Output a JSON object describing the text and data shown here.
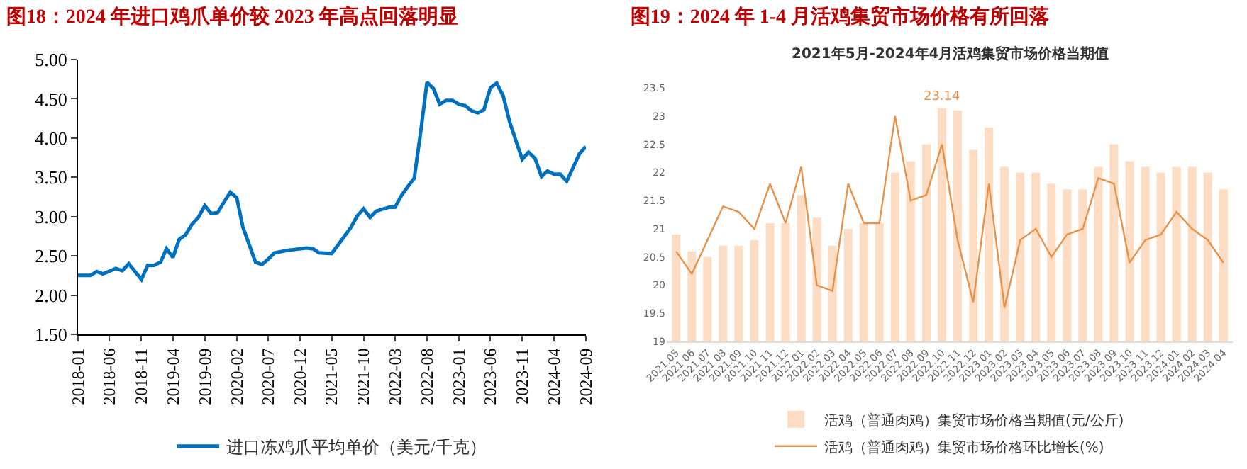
{
  "chart_data": [
    {
      "type": "line",
      "title": "图18：2024 年进口鸡爪单价较 2023 年高点回落明显",
      "x": [
        "2018-01",
        "2018-03",
        "2018-04",
        "2018-05",
        "2018-07",
        "2018-08",
        "2018-09",
        "2018-11",
        "2018-12",
        "2019-01",
        "2019-02",
        "2019-03",
        "2019-04",
        "2019-05",
        "2019-06",
        "2019-07",
        "2019-08",
        "2019-09",
        "2019-10",
        "2019-11",
        "2019-12",
        "2020-01",
        "2020-02",
        "2020-03",
        "2020-04",
        "2020-05",
        "2020-06",
        "2020-07",
        "2020-08",
        "2020-10",
        "2021-01",
        "2021-02",
        "2021-03",
        "2021-05",
        "2021-06",
        "2021-07",
        "2021-08",
        "2021-09",
        "2021-10",
        "2021-11",
        "2021-12",
        "2022-02",
        "2022-03",
        "2022-04",
        "2022-05",
        "2022-06",
        "2022-07",
        "2022-08",
        "2022-09",
        "2022-10",
        "2022-11",
        "2022-12",
        "2023-01",
        "2023-02",
        "2023-03",
        "2023-04",
        "2023-05",
        "2023-06",
        "2023-07",
        "2023-08",
        "2023-09",
        "2023-10",
        "2023-11",
        "2023-12",
        "2024-01",
        "2024-02",
        "2024-03",
        "2024-04",
        "2024-05",
        "2024-06",
        "2024-07",
        "2024-08",
        "2024-09"
      ],
      "series": [
        {
          "name": "进口冻鸡爪平均单价（美元/千克）",
          "color": "#0070c0",
          "values": [
            2.25,
            2.25,
            2.3,
            2.27,
            2.34,
            2.31,
            2.4,
            2.2,
            2.38,
            2.38,
            2.42,
            2.59,
            2.48,
            2.71,
            2.77,
            2.9,
            2.99,
            3.14,
            3.04,
            3.05,
            3.18,
            3.31,
            3.24,
            2.87,
            2.64,
            2.42,
            2.39,
            2.46,
            2.54,
            2.57,
            2.6,
            2.59,
            2.54,
            2.53,
            2.64,
            2.75,
            2.86,
            3.01,
            3.1,
            2.99,
            3.07,
            3.12,
            3.12,
            3.27,
            3.38,
            3.49,
            4.06,
            4.71,
            4.63,
            4.43,
            4.48,
            4.48,
            4.43,
            4.41,
            4.35,
            4.32,
            4.36,
            4.64,
            4.7,
            4.54,
            4.21,
            3.97,
            3.73,
            3.82,
            3.74,
            3.51,
            3.58,
            3.54,
            3.54,
            3.45,
            3.62,
            3.8,
            3.89
          ]
        }
      ],
      "xlim": [
        "2018-01",
        "2024-09"
      ],
      "xticks": [
        {
          "value": "2018-01",
          "label": "2018-01"
        },
        {
          "value": "2018-06",
          "label": "2018-06"
        },
        {
          "value": "2018-11",
          "label": "2018-11"
        },
        {
          "value": "2019-04",
          "label": "2019-04"
        },
        {
          "value": "2019-09",
          "label": "2019-09"
        },
        {
          "value": "2020-02",
          "label": "2020-02"
        },
        {
          "value": "2020-07",
          "label": "2020-07"
        },
        {
          "value": "2020-12",
          "label": "2020-12"
        },
        {
          "value": "2021-05",
          "label": "2021-05"
        },
        {
          "value": "2021-10",
          "label": "2021-10"
        },
        {
          "value": "2022-03",
          "label": "2022-03"
        },
        {
          "value": "2022-08",
          "label": "2022-08"
        },
        {
          "value": "2023-01",
          "label": "2023-01"
        },
        {
          "value": "2023-06",
          "label": "2023-06"
        },
        {
          "value": "2023-11",
          "label": "2023-11"
        },
        {
          "value": "2024-04",
          "label": "2024-04"
        },
        {
          "value": "2024-09",
          "label": "2024-09"
        }
      ],
      "ylim": [
        1.5,
        5
      ],
      "yticks": [
        {
          "value": 1.5,
          "label": "1.50"
        },
        {
          "value": 2,
          "label": "2.00"
        },
        {
          "value": 2.5,
          "label": "2.50"
        },
        {
          "value": 3,
          "label": "3.00"
        },
        {
          "value": 3.5,
          "label": "3.50"
        },
        {
          "value": 4,
          "label": "4.00"
        },
        {
          "value": 4.5,
          "label": "4.50"
        },
        {
          "value": 5,
          "label": "5.00"
        }
      ],
      "legend": "bottom",
      "grid": false
    },
    {
      "type": "bar",
      "title": "图19：2024 年 1-4 月活鸡集贸市场价格有所回落",
      "subtitle": "2021年5月-2024年4月活鸡集贸市场价格当期值",
      "categories": [
        "2021.05",
        "2021.06",
        "2021.07",
        "2021.08",
        "2021.09",
        "2021.10",
        "2021.11",
        "2021.12",
        "2022.01",
        "2022.02",
        "2022.03",
        "2022.04",
        "2022.05",
        "2022.06",
        "2022.07",
        "2022.08",
        "2022.09",
        "2022.10",
        "2022.11",
        "2022.12",
        "2023.01",
        "2023.02",
        "2023.03",
        "2023.04",
        "2023.05",
        "2023.06",
        "2023.07",
        "2023.08",
        "2023.09",
        "2023.10",
        "2023.11",
        "2023.12",
        "2024.01",
        "2024.02",
        "2024.03",
        "2024.04"
      ],
      "series": [
        {
          "name": "活鸡（普通肉鸡）集贸市场价格当期值(元/公斤)",
          "color": "#fddcc4",
          "values": [
            20.9,
            20.6,
            20.5,
            20.7,
            20.7,
            20.8,
            21.1,
            21.1,
            21.6,
            21.2,
            20.7,
            21.0,
            21.1,
            21.1,
            22.0,
            22.2,
            22.5,
            23.14,
            23.1,
            22.4,
            22.8,
            22.1,
            22.0,
            22.0,
            21.8,
            21.7,
            21.7,
            22.1,
            22.5,
            22.2,
            22.1,
            22.0,
            22.1,
            22.1,
            22.0,
            21.7
          ],
          "value_labels": [
            null,
            null,
            null,
            null,
            null,
            null,
            null,
            null,
            null,
            null,
            null,
            null,
            null,
            null,
            null,
            null,
            null,
            "23.14",
            null,
            null,
            null,
            null,
            null,
            null,
            null,
            null,
            null,
            null,
            null,
            null,
            null,
            null,
            null,
            null,
            null,
            null
          ]
        },
        {
          "type": "line",
          "name": "活鸡（普通肉鸡）集贸市场价格环比增长(%)",
          "color": "#e8914a",
          "values": [
            20.6,
            20.2,
            20.8,
            21.4,
            21.3,
            21.0,
            21.8,
            21.1,
            22.1,
            20.0,
            19.9,
            21.8,
            21.1,
            21.1,
            23.0,
            21.5,
            21.6,
            22.5,
            20.8,
            19.7,
            21.8,
            19.6,
            20.8,
            21.0,
            20.5,
            20.9,
            21.0,
            21.9,
            21.8,
            20.4,
            20.8,
            20.9,
            21.3,
            21.0,
            20.8,
            20.4
          ]
        }
      ],
      "ylim": [
        19,
        23.5
      ],
      "yticks": [
        19,
        19.5,
        20,
        20.5,
        21,
        21.5,
        22,
        22.5,
        23,
        23.5
      ],
      "legend": "bottom",
      "grid": false
    }
  ]
}
